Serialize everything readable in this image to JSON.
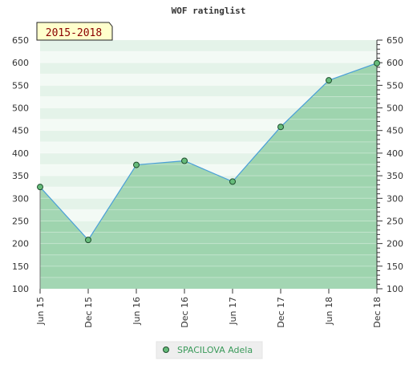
{
  "chart_data": {
    "type": "area",
    "title": "WOF ratinglist",
    "period_label": "2015-2018",
    "categories": [
      "Jun 15",
      "Dec 15",
      "Jun 16",
      "Dec 16",
      "Jun 17",
      "Dec 17",
      "Jun 18",
      "Dec 18"
    ],
    "series": [
      {
        "name": "SPACILOVA Adela",
        "values": [
          325,
          208,
          374,
          383,
          337,
          458,
          561,
          599
        ]
      }
    ],
    "ylim": [
      100,
      650
    ],
    "yticks": [
      100,
      150,
      200,
      250,
      300,
      350,
      400,
      450,
      500,
      550,
      600,
      650
    ],
    "grid": true,
    "legend_position": "bottom-center",
    "colors": {
      "line": "#4a9fd8",
      "marker_fill": "#66bb7a",
      "marker_stroke": "#1d4d2c",
      "area": "#78c38f",
      "badge_bg": "#ffffcc",
      "badge_text": "#8b0000"
    }
  }
}
